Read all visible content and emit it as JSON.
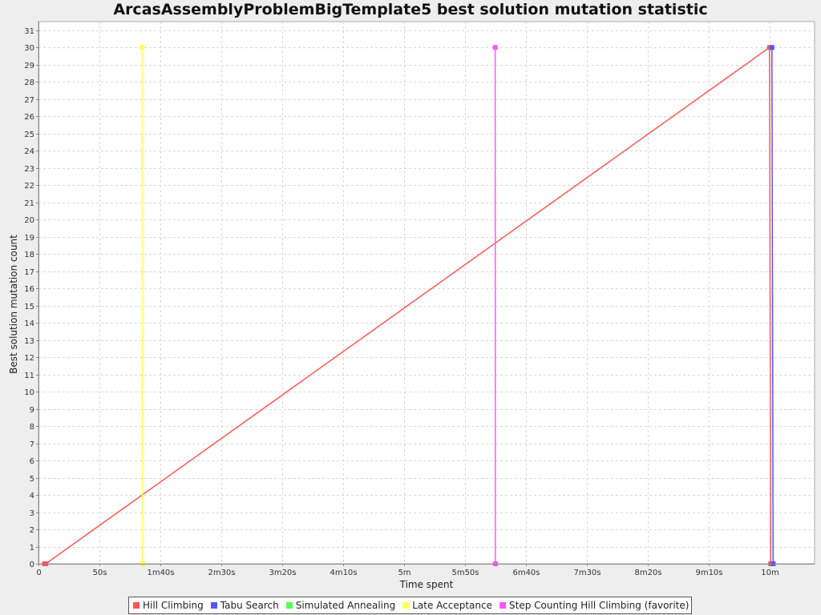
{
  "chart_data": {
    "type": "line",
    "title": "ArcasAssemblyProblemBigTemplate5 best solution mutation statistic",
    "xlabel": "Time spent",
    "ylabel": "Best solution mutation count",
    "x_unit": "seconds",
    "xlim": [
      0,
      637
    ],
    "ylim": [
      0,
      31.5
    ],
    "x_ticks": [
      {
        "value": 0,
        "label": "0"
      },
      {
        "value": 50,
        "label": "50s"
      },
      {
        "value": 100,
        "label": "1m40s"
      },
      {
        "value": 150,
        "label": "2m30s"
      },
      {
        "value": 200,
        "label": "3m20s"
      },
      {
        "value": 250,
        "label": "4m10s"
      },
      {
        "value": 300,
        "label": "5m"
      },
      {
        "value": 350,
        "label": "5m50s"
      },
      {
        "value": 400,
        "label": "6m40s"
      },
      {
        "value": 450,
        "label": "7m30s"
      },
      {
        "value": 500,
        "label": "8m20s"
      },
      {
        "value": 550,
        "label": "9m10s"
      },
      {
        "value": 600,
        "label": "10m"
      }
    ],
    "y_ticks": [
      0,
      1,
      2,
      3,
      4,
      5,
      6,
      7,
      8,
      9,
      10,
      11,
      12,
      13,
      14,
      15,
      16,
      17,
      18,
      19,
      20,
      21,
      22,
      23,
      24,
      25,
      26,
      27,
      28,
      29,
      30,
      31
    ],
    "grid": true,
    "legend_position": "bottom",
    "series": [
      {
        "name": "Hill Climbing",
        "color": "#ff5555",
        "points": [
          [
            5,
            0
          ],
          [
            6,
            0
          ],
          [
            600,
            30
          ],
          [
            601,
            0
          ]
        ]
      },
      {
        "name": "Tabu Search",
        "color": "#5555ff",
        "points": [
          [
            602,
            30
          ],
          [
            603,
            0
          ]
        ]
      },
      {
        "name": "Simulated Annealing",
        "color": "#55ff55",
        "points": []
      },
      {
        "name": "Late Acceptance",
        "color": "#ffff55",
        "points": [
          [
            85,
            30
          ],
          [
            85.3,
            0
          ]
        ]
      },
      {
        "name": "Step Counting Hill Climbing (favorite)",
        "color": "#ff55ff",
        "points": [
          [
            374.8,
            30
          ],
          [
            375,
            0
          ]
        ]
      }
    ]
  }
}
